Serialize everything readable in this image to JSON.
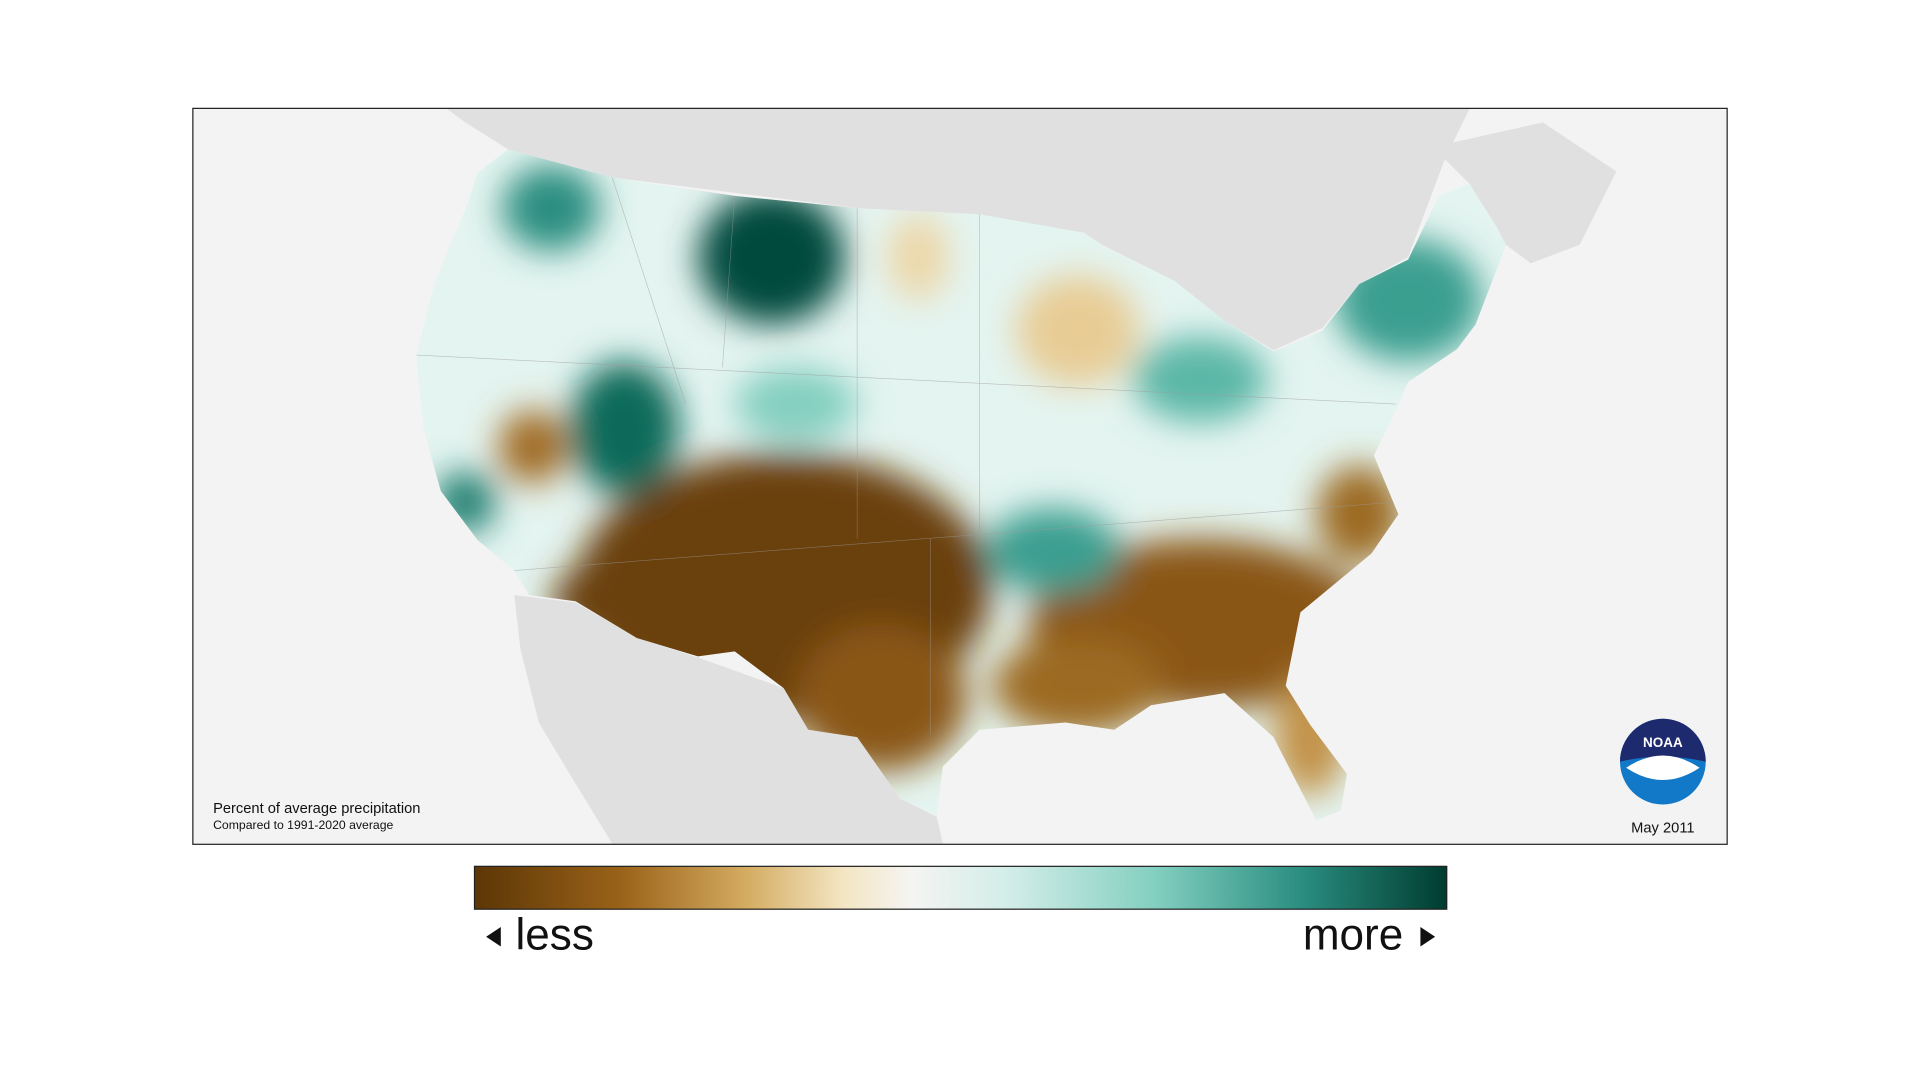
{
  "map": {
    "caption": {
      "title": "Percent of average precipitation",
      "subtitle": "Compared to 1991-2020 average"
    },
    "date": "May 2011",
    "logo": "NOAA"
  },
  "legend": {
    "low_label": "less",
    "high_label": "more"
  }
}
